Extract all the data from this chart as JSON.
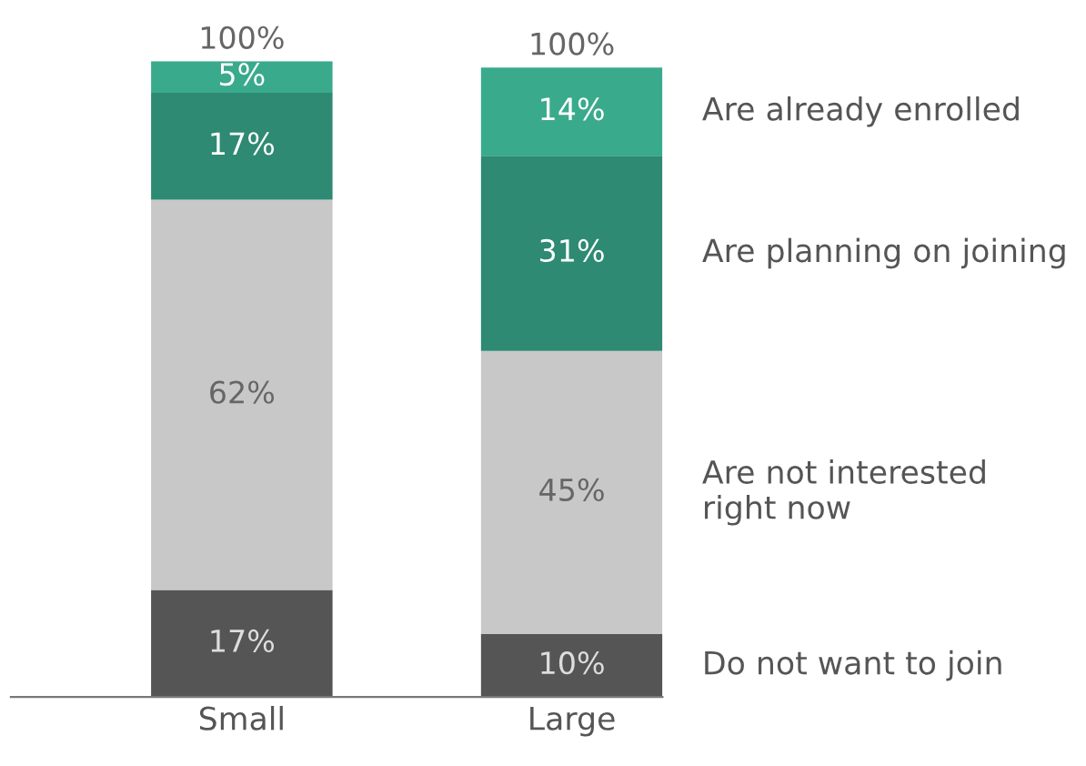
{
  "chart_data": {
    "type": "bar",
    "stacked": true,
    "categories": [
      "Small",
      "Large"
    ],
    "series": [
      {
        "name": "Do not want to join",
        "color": "#555555",
        "values": [
          17,
          10
        ],
        "value_labels": [
          "17%",
          "10%"
        ]
      },
      {
        "name": "Are not interested\nright now",
        "color": "#c8c8c8",
        "values": [
          62,
          45
        ],
        "value_labels": [
          "62%",
          "45%"
        ]
      },
      {
        "name": "Are planning on joining",
        "color": "#2e8a72",
        "values": [
          17,
          31
        ],
        "value_labels": [
          "17%",
          "31%"
        ]
      },
      {
        "name": "Are already enrolled",
        "color": "#3aaa8c",
        "values": [
          5,
          14
        ],
        "value_labels": [
          "5%",
          "14%"
        ]
      }
    ],
    "totals": [
      "100%",
      "100%"
    ],
    "legend": "right",
    "grid": false
  }
}
